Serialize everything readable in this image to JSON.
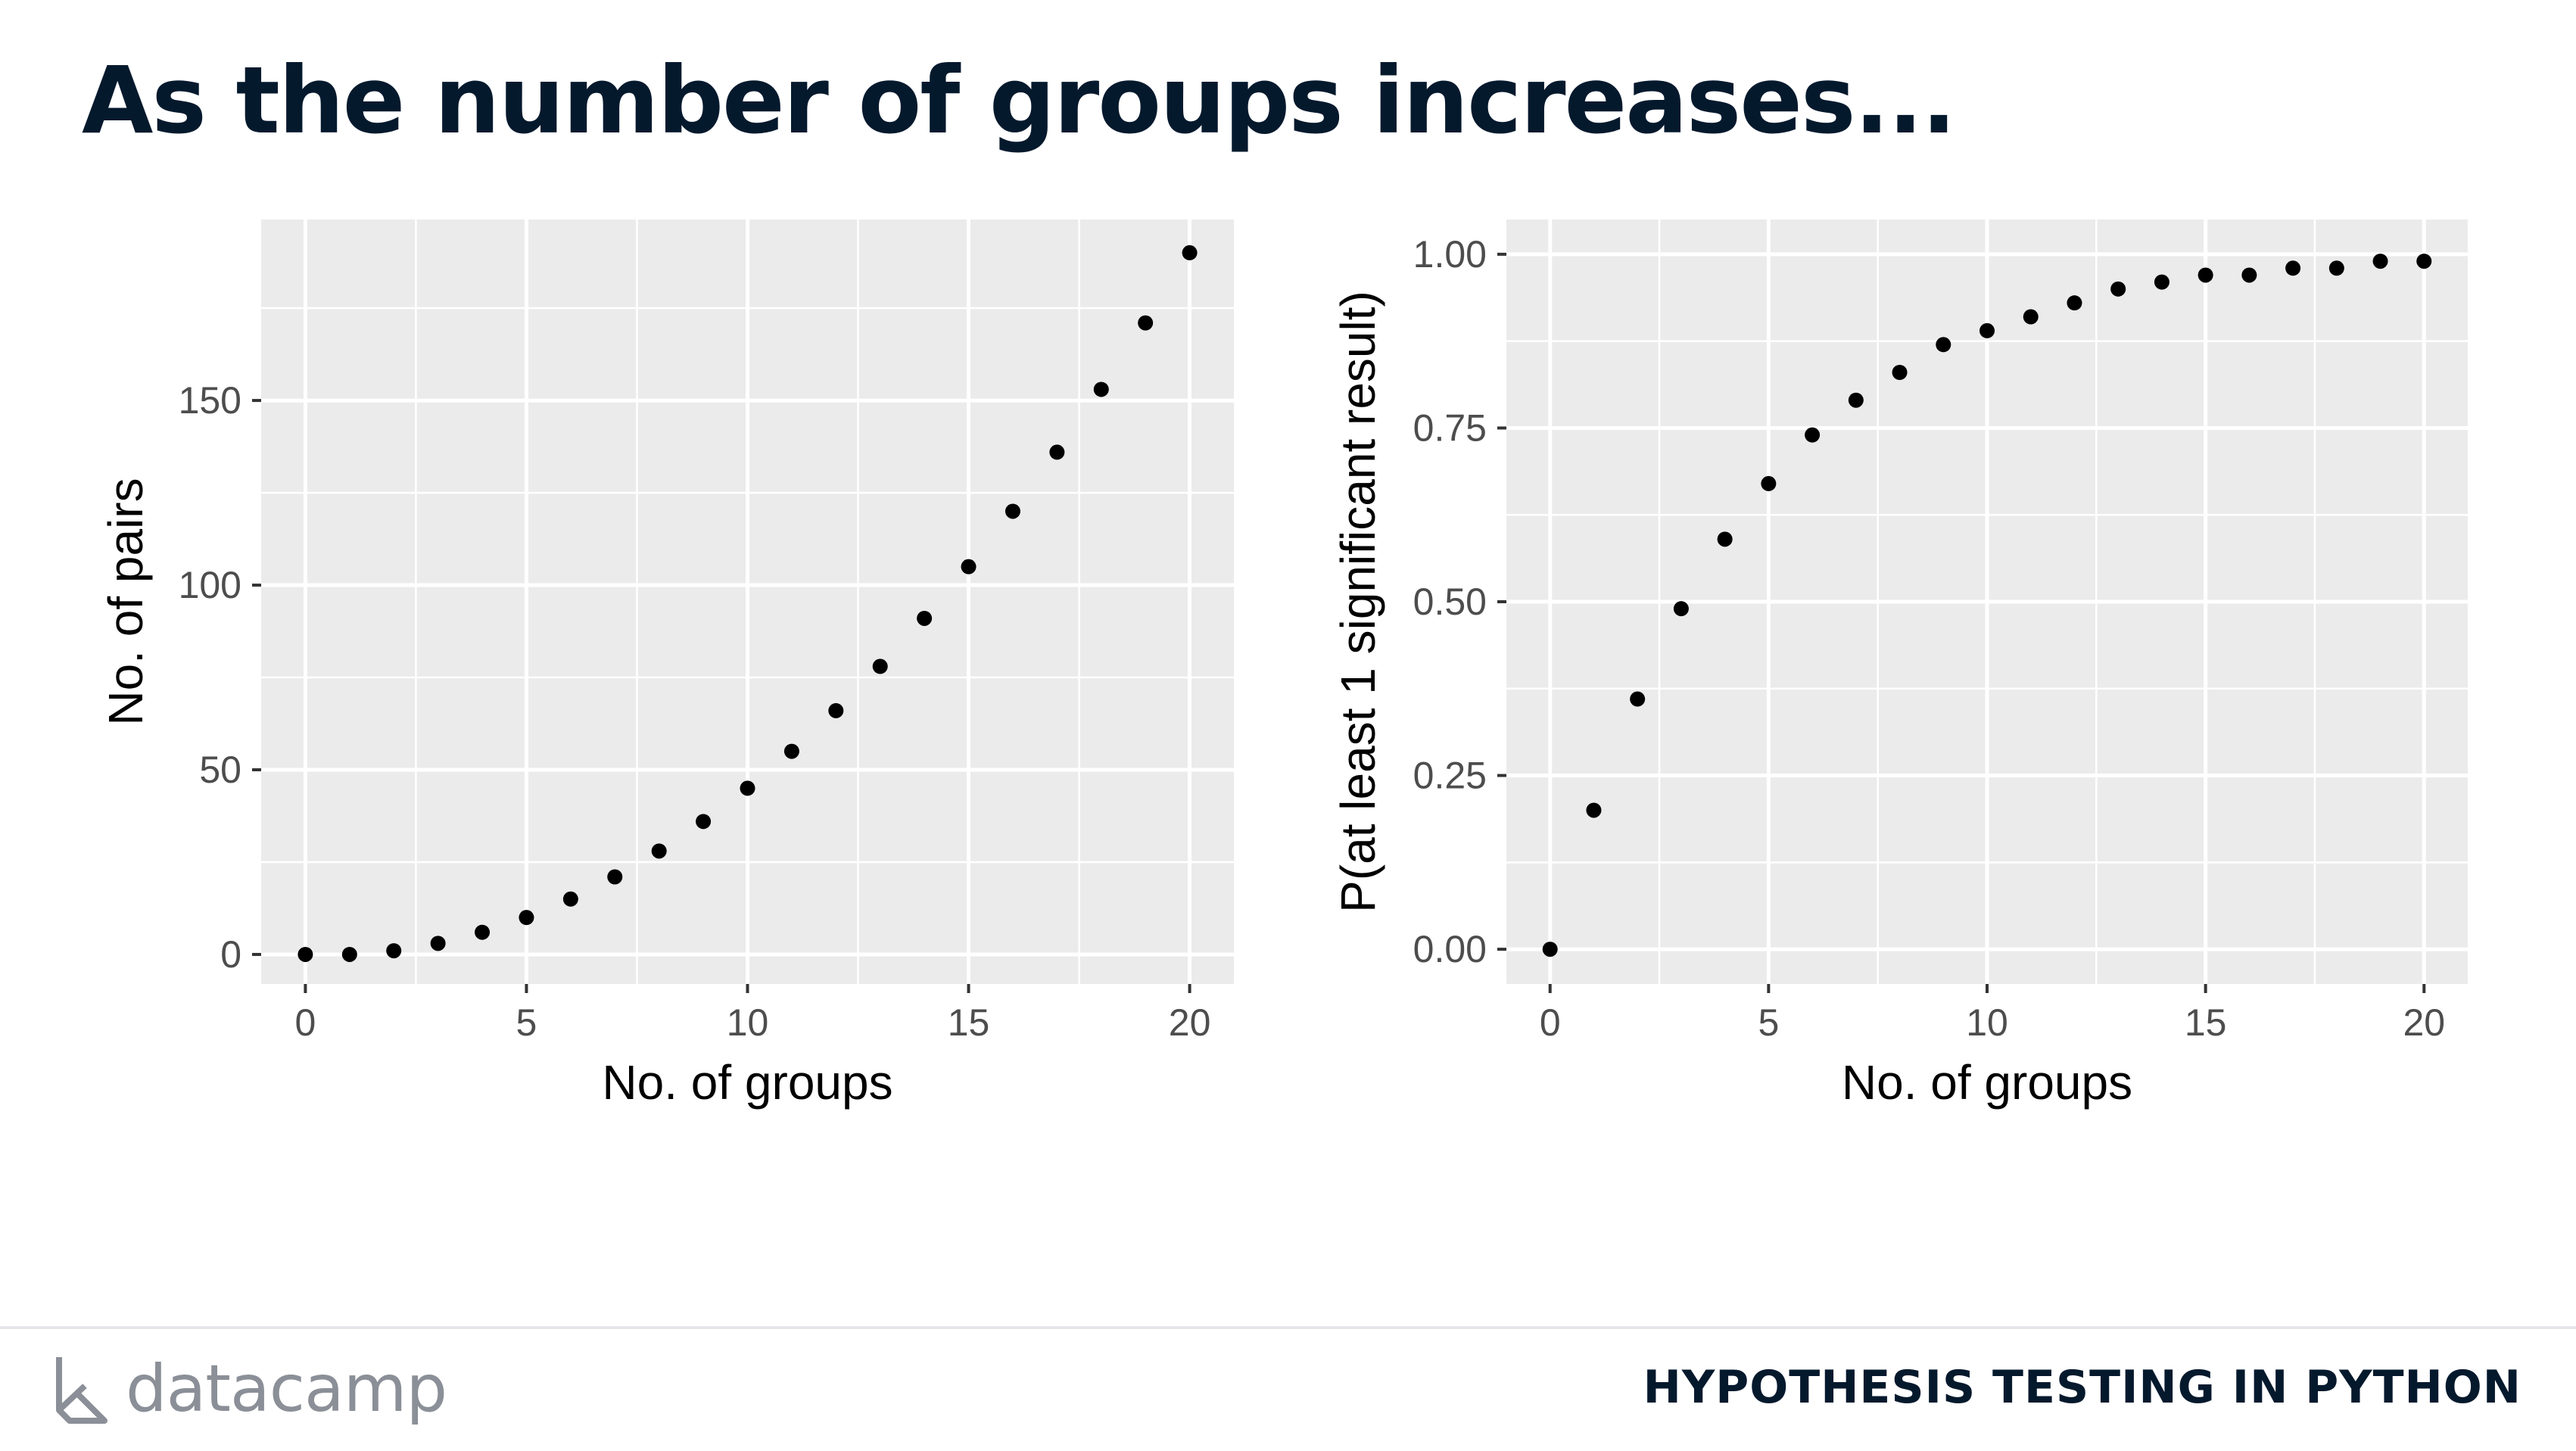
{
  "slide": {
    "title": "As the number of groups increases...",
    "course": "HYPOTHESIS TESTING IN PYTHON",
    "brand": "datacamp"
  },
  "chart_data": [
    {
      "type": "scatter",
      "xlabel": "No. of groups",
      "ylabel": "No. of pairs",
      "xlim": [
        -1,
        21
      ],
      "ylim": [
        -8,
        199
      ],
      "xticks": [
        0,
        5,
        10,
        15,
        20
      ],
      "xtick_labels": [
        "0",
        "5",
        "10",
        "15",
        "20"
      ],
      "yticks": [
        0,
        50,
        100,
        150
      ],
      "ytick_labels": [
        "0",
        "50",
        "100",
        "150"
      ],
      "grid": true,
      "x": [
        0,
        1,
        2,
        3,
        4,
        5,
        6,
        7,
        8,
        9,
        10,
        11,
        12,
        13,
        14,
        15,
        16,
        17,
        18,
        19,
        20
      ],
      "y": [
        0,
        0,
        1,
        3,
        6,
        10,
        15,
        21,
        28,
        36,
        45,
        55,
        66,
        78,
        91,
        105,
        120,
        136,
        153,
        171,
        190
      ]
    },
    {
      "type": "scatter",
      "xlabel": "No. of groups",
      "ylabel": "P(at least 1 significant result)",
      "xlim": [
        -1,
        21
      ],
      "ylim": [
        -0.05,
        1.05
      ],
      "xticks": [
        0,
        5,
        10,
        15,
        20
      ],
      "xtick_labels": [
        "0",
        "5",
        "10",
        "15",
        "20"
      ],
      "yticks": [
        0,
        0.25,
        0.5,
        0.75,
        1
      ],
      "ytick_labels": [
        "0.00",
        "0.25",
        "0.50",
        "0.75",
        "1.00"
      ],
      "grid": true,
      "x": [
        0,
        1,
        2,
        3,
        4,
        5,
        6,
        7,
        8,
        9,
        10,
        11,
        12,
        13,
        14,
        15,
        16,
        17,
        18,
        19,
        20
      ],
      "y": [
        0,
        0.2,
        0.36,
        0.49,
        0.59,
        0.67,
        0.74,
        0.79,
        0.83,
        0.87,
        0.89,
        0.91,
        0.93,
        0.95,
        0.96,
        0.97,
        0.97,
        0.98,
        0.98,
        0.99,
        0.99
      ]
    }
  ]
}
